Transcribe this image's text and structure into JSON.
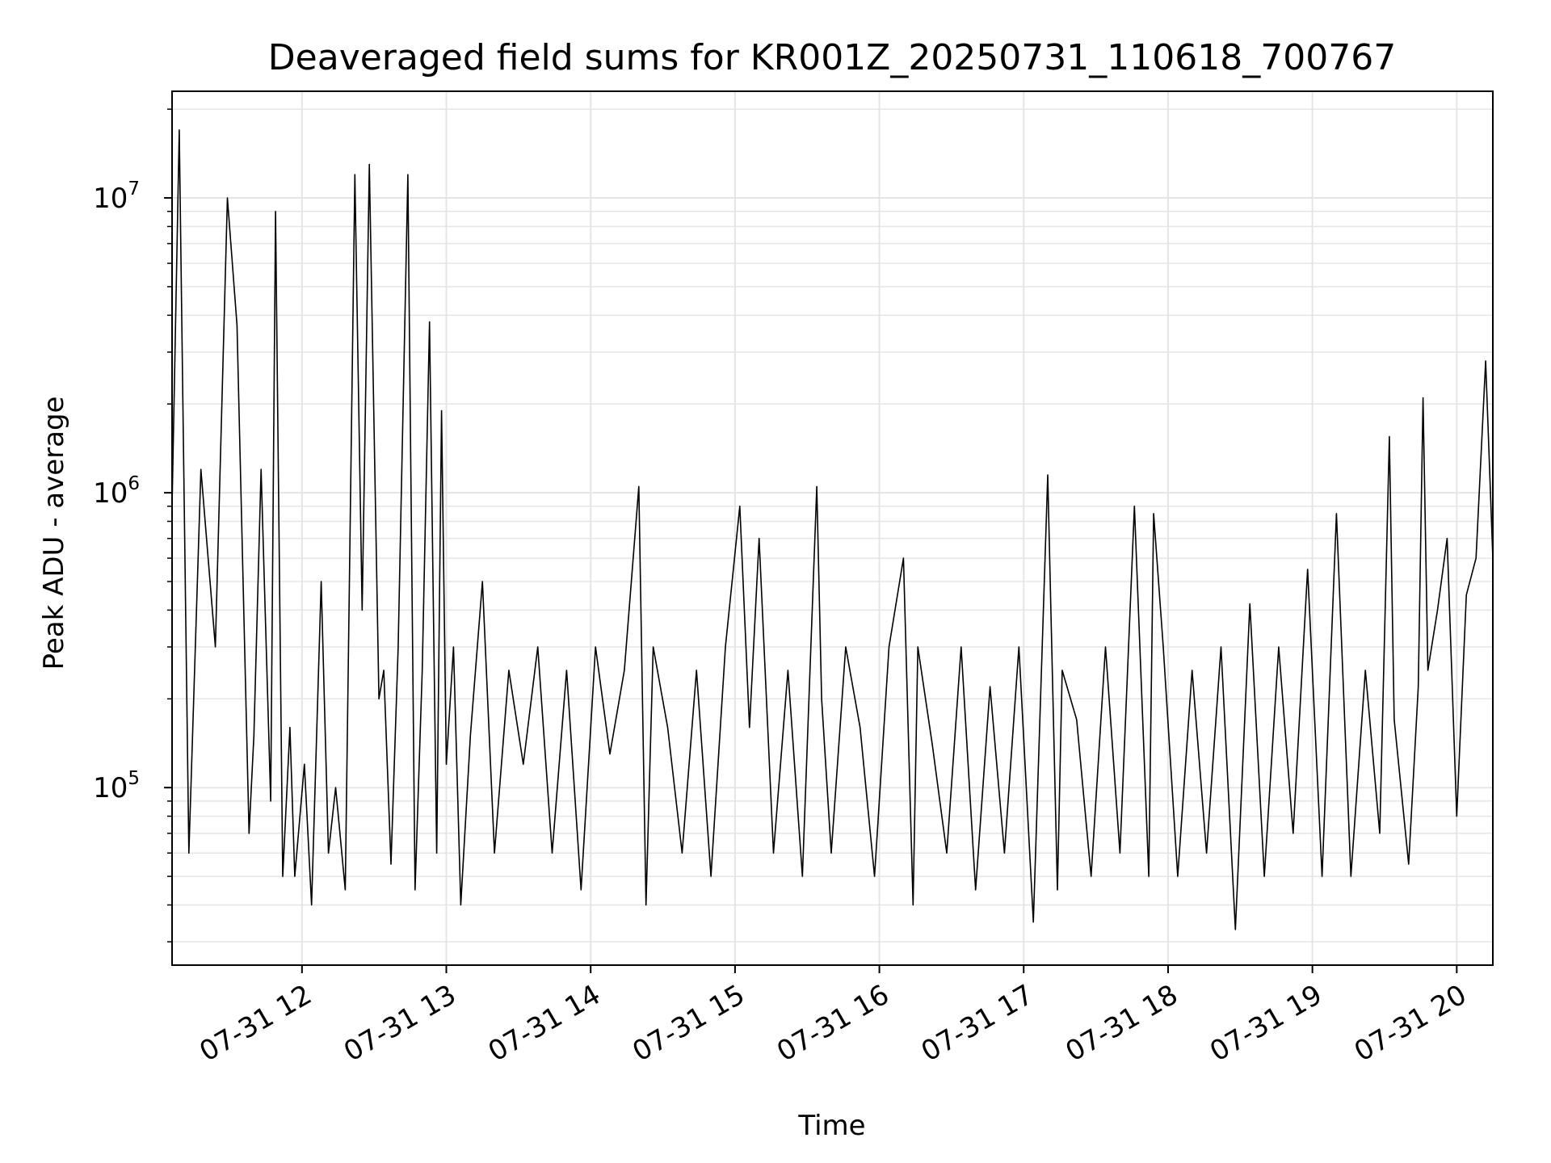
{
  "chart_data": {
    "type": "line",
    "title": "Deaveraged field sums for KR001Z_20250731_110618_700767",
    "xlabel": "Time",
    "ylabel": "Peak ADU - average",
    "x_scale": "time",
    "y_scale": "log",
    "xlim": [
      "2025-07-31 11:06",
      "2025-07-31 20:15"
    ],
    "ylim": [
      25000,
      23000000
    ],
    "grid": true,
    "line_color": "#000000",
    "grid_color": "#e5e5e5",
    "x_ticks": [
      {
        "value": "2025-07-31 12:00",
        "label": "07-31 12"
      },
      {
        "value": "2025-07-31 13:00",
        "label": "07-31 13"
      },
      {
        "value": "2025-07-31 14:00",
        "label": "07-31 14"
      },
      {
        "value": "2025-07-31 15:00",
        "label": "07-31 15"
      },
      {
        "value": "2025-07-31 16:00",
        "label": "07-31 16"
      },
      {
        "value": "2025-07-31 17:00",
        "label": "07-31 17"
      },
      {
        "value": "2025-07-31 18:00",
        "label": "07-31 18"
      },
      {
        "value": "2025-07-31 19:00",
        "label": "07-31 19"
      },
      {
        "value": "2025-07-31 20:00",
        "label": "07-31 20"
      }
    ],
    "y_ticks": [
      {
        "value": 100000,
        "base": "10",
        "exp": "5"
      },
      {
        "value": 1000000,
        "base": "10",
        "exp": "6"
      },
      {
        "value": 10000000,
        "base": "10",
        "exp": "7"
      }
    ],
    "series": [
      {
        "x": [
          "11:06",
          "11:09",
          "11:13",
          "11:18",
          "11:24",
          "11:29",
          "11:33",
          "11:38",
          "11:40",
          "11:43",
          "11:47",
          "11:49",
          "11:52",
          "11:55",
          "11:57",
          "12:01",
          "12:04",
          "12:08",
          "12:11",
          "12:14",
          "12:18",
          "12:22",
          "12:25",
          "12:28",
          "12:32",
          "12:34",
          "12:37",
          "12:40",
          "12:44",
          "12:47",
          "12:50",
          "12:53",
          "12:56",
          "12:58",
          "13:00",
          "13:03",
          "13:06",
          "13:10",
          "13:15",
          "13:20",
          "13:26",
          "13:32",
          "13:38",
          "13:44",
          "13:50",
          "13:56",
          "14:02",
          "14:08",
          "14:14",
          "14:20",
          "14:23",
          "14:26",
          "14:32",
          "14:38",
          "14:44",
          "14:50",
          "14:56",
          "15:02",
          "15:06",
          "15:10",
          "15:16",
          "15:22",
          "15:28",
          "15:34",
          "15:36",
          "15:40",
          "15:46",
          "15:52",
          "15:58",
          "16:04",
          "16:10",
          "16:14",
          "16:16",
          "16:22",
          "16:28",
          "16:34",
          "16:40",
          "16:46",
          "16:52",
          "16:58",
          "17:04",
          "17:10",
          "17:14",
          "17:16",
          "17:22",
          "17:28",
          "17:34",
          "17:40",
          "17:46",
          "17:52",
          "17:54",
          "17:58",
          "18:04",
          "18:10",
          "18:16",
          "18:22",
          "18:28",
          "18:34",
          "18:40",
          "18:46",
          "18:52",
          "18:58",
          "19:04",
          "19:10",
          "19:16",
          "19:22",
          "19:28",
          "19:32",
          "19:34",
          "19:40",
          "19:44",
          "19:46",
          "19:48",
          "19:52",
          "19:56",
          "20:00",
          "20:04",
          "20:08",
          "20:12",
          "20:15"
        ],
        "y": [
          900000,
          17000000,
          60000,
          1200000,
          300000,
          10000000,
          3700000,
          70000,
          150000,
          1200000,
          90000,
          9000000,
          50000,
          160000,
          50000,
          120000,
          40000,
          500000,
          60000,
          100000,
          45000,
          12000000,
          400000,
          13000000,
          200000,
          250000,
          55000,
          300000,
          12000000,
          45000,
          250000,
          3800000,
          60000,
          1900000,
          120000,
          300000,
          40000,
          150000,
          500000,
          60000,
          250000,
          120000,
          300000,
          60000,
          250000,
          45000,
          300000,
          130000,
          250000,
          1050000,
          40000,
          300000,
          160000,
          60000,
          250000,
          50000,
          300000,
          900000,
          160000,
          700000,
          60000,
          250000,
          50000,
          1050000,
          200000,
          60000,
          300000,
          160000,
          50000,
          300000,
          600000,
          40000,
          300000,
          140000,
          60000,
          300000,
          45000,
          220000,
          60000,
          300000,
          35000,
          1150000,
          45000,
          250000,
          170000,
          50000,
          300000,
          60000,
          900000,
          50000,
          850000,
          300000,
          50000,
          250000,
          60000,
          300000,
          33000,
          420000,
          50000,
          300000,
          70000,
          550000,
          50000,
          850000,
          50000,
          250000,
          70000,
          1550000,
          170000,
          55000,
          220000,
          2100000,
          250000,
          400000,
          700000,
          80000,
          450000,
          600000,
          2800000,
          600000
        ]
      }
    ]
  }
}
